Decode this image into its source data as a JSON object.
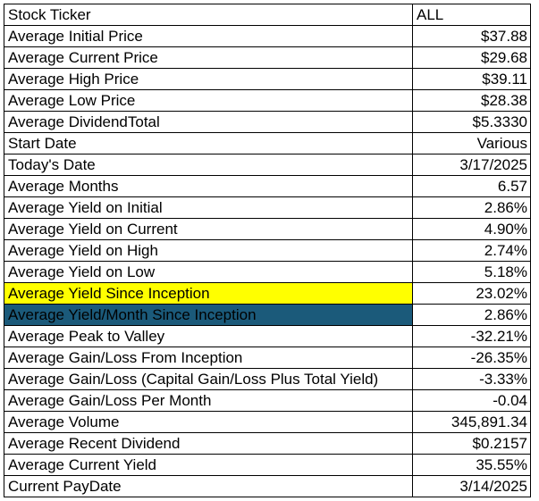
{
  "table": {
    "header": {
      "label": "Stock Ticker",
      "value": "ALL"
    },
    "rows": [
      {
        "label": "Average Initial Price",
        "value": "$37.88"
      },
      {
        "label": "Average Current Price",
        "value": "$29.68"
      },
      {
        "label": "Average High Price",
        "value": "$39.11"
      },
      {
        "label": "Average Low Price",
        "value": "$28.38"
      },
      {
        "label": "Average DividendTotal",
        "value": "$5.3330"
      },
      {
        "label": "Start Date",
        "value": "Various"
      },
      {
        "label": "Today's Date",
        "value": "3/17/2025"
      },
      {
        "label": "Average Months",
        "value": "6.57"
      },
      {
        "label": "Average Yield on Initial",
        "value": "2.86%"
      },
      {
        "label": "Average Yield on Current",
        "value": "4.90%"
      },
      {
        "label": "Average Yield on High",
        "value": "2.74%"
      },
      {
        "label": "Average Yield on Low",
        "value": "5.18%"
      },
      {
        "label": "Average Yield Since Inception",
        "value": "23.02%"
      },
      {
        "label": "Average Yield/Month Since Inception",
        "value": "2.86%"
      },
      {
        "label": "Average Peak to Valley",
        "value": "-32.21%"
      },
      {
        "label": "Average Gain/Loss From Inception",
        "value": "-26.35%"
      },
      {
        "label": "Average Gain/Loss (Capital Gain/Loss Plus Total Yield)",
        "value": "-3.33%"
      },
      {
        "label": "Average Gain/Loss Per Month",
        "value": "-0.04"
      },
      {
        "label": "Average Volume",
        "value": "345,891.34"
      },
      {
        "label": "Average Recent Dividend",
        "value": "$0.2157"
      },
      {
        "label": "Average Current Yield",
        "value": "35.55%"
      },
      {
        "label": "Current PayDate",
        "value": "3/14/2025"
      }
    ]
  },
  "highlights": {
    "yellow": "#ffff00",
    "teal": "#1b5a7a"
  }
}
